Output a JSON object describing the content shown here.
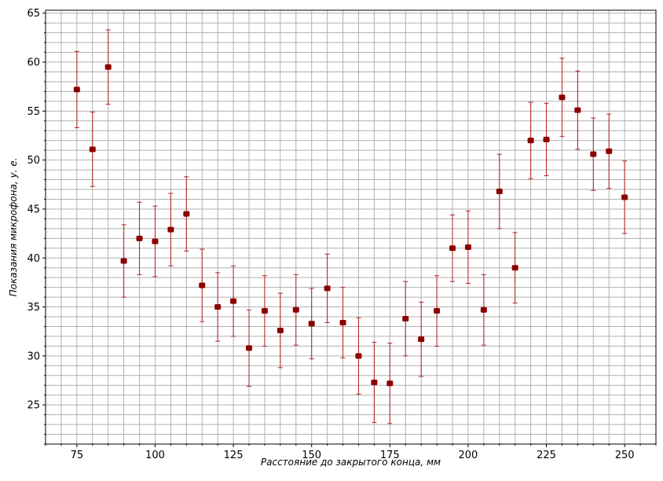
{
  "chart_data": {
    "type": "scatter",
    "xlabel": "Расстояние до закрытого конца,  мм",
    "ylabel": "Показания микрофона,  у. е.",
    "xlim": [
      65,
      260
    ],
    "ylim": [
      21,
      65.3
    ],
    "x_ticks": [
      75,
      100,
      125,
      150,
      175,
      200,
      225,
      250
    ],
    "y_ticks": [
      25,
      30,
      35,
      40,
      45,
      50,
      55,
      60,
      65
    ],
    "grid": true,
    "error_bars": true,
    "marker_color": "#8b0000",
    "errorbar_color": "#b22222",
    "grid_color": "#b0b0b0",
    "series": [
      {
        "x": [
          75,
          80,
          85,
          90,
          95,
          100,
          105,
          110,
          115,
          120,
          125,
          130,
          135,
          140,
          145,
          150,
          155,
          160,
          165,
          170,
          175,
          180,
          185,
          190,
          195,
          200,
          205,
          210,
          215,
          220,
          225,
          230,
          235,
          240,
          245,
          250
        ],
        "y": [
          57.2,
          51.1,
          59.5,
          39.7,
          42.0,
          41.7,
          42.9,
          44.5,
          37.2,
          35.0,
          35.6,
          30.8,
          34.6,
          32.6,
          34.7,
          33.3,
          36.9,
          33.4,
          30.0,
          27.3,
          27.2,
          33.8,
          31.7,
          34.6,
          41.0,
          41.1,
          34.7,
          46.8,
          39.0,
          52.0,
          52.1,
          56.4,
          55.1,
          50.6,
          50.9,
          46.2
        ],
        "yerr": [
          3.9,
          3.8,
          3.8,
          3.7,
          3.7,
          3.6,
          3.7,
          3.8,
          3.7,
          3.5,
          3.6,
          3.9,
          3.6,
          3.8,
          3.6,
          3.6,
          3.5,
          3.6,
          3.9,
          4.1,
          4.1,
          3.8,
          3.8,
          3.6,
          3.4,
          3.7,
          3.6,
          3.8,
          3.6,
          3.9,
          3.7,
          4.0,
          4.0,
          3.7,
          3.8,
          3.7
        ]
      }
    ]
  }
}
